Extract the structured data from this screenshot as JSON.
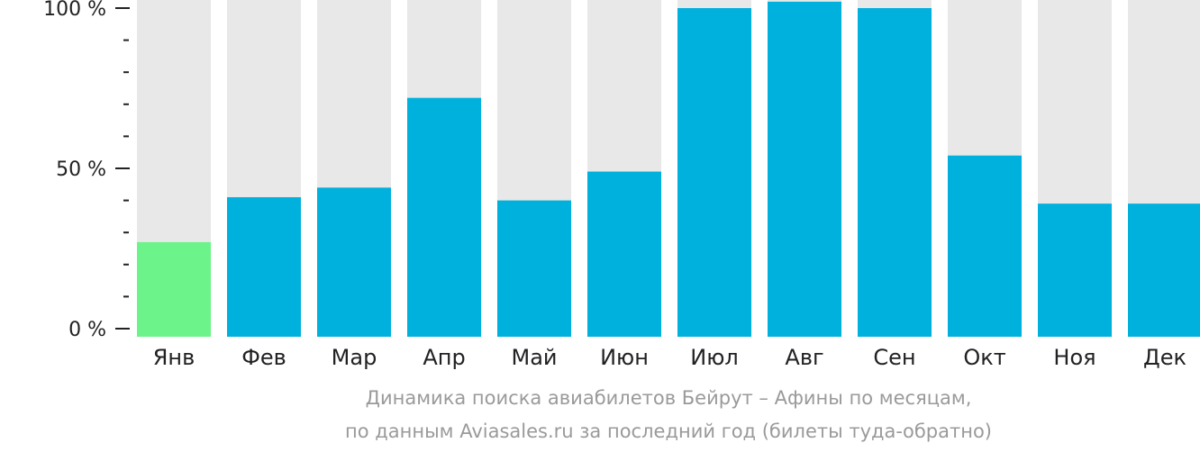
{
  "chart_data": {
    "type": "bar",
    "categories": [
      "Янв",
      "Фев",
      "Мар",
      "Апр",
      "Май",
      "Июн",
      "Июл",
      "Авг",
      "Сен",
      "Окт",
      "Ноя",
      "Дек"
    ],
    "values": [
      27,
      41,
      44,
      72,
      40,
      49,
      100,
      102,
      100,
      54,
      39,
      39
    ],
    "ylim": [
      0,
      100
    ],
    "y_ticks": [
      {
        "value": 0,
        "label": "0 %"
      },
      {
        "value": 50,
        "label": "50 %"
      },
      {
        "value": 100,
        "label": "100 %"
      }
    ],
    "y_minor_ticks": [
      10,
      20,
      30,
      40,
      60,
      70,
      80,
      90
    ],
    "highlight_index": 0,
    "colors": {
      "bar": "#00b0dd",
      "highlight": "#6cf38a",
      "background_bar": "#e8e8e8",
      "axis": "#222222",
      "caption": "#9a9a9a"
    }
  },
  "caption": {
    "line1": "Динамика поиска авиабилетов Бейрут – Афины по месяцам,",
    "line2": "по данным Aviasales.ru за последний год (билеты туда-обратно)"
  }
}
